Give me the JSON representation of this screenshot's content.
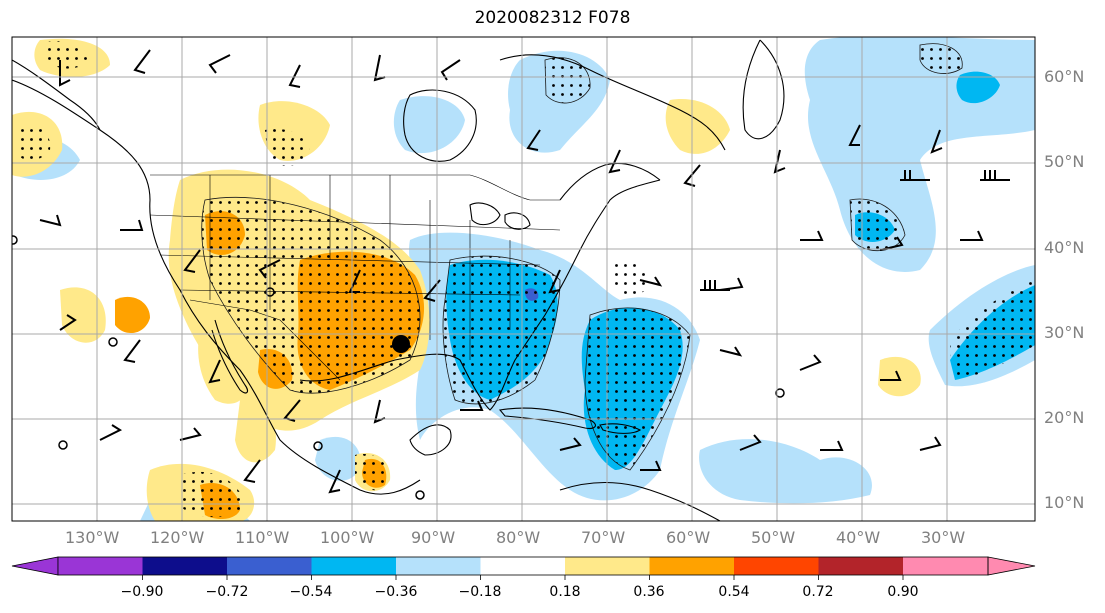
{
  "title": "2020082312 F078",
  "lat_labels": [
    "60°N",
    "50°N",
    "40°N",
    "30°N",
    "20°N",
    "10°N"
  ],
  "lon_labels": [
    "130°W",
    "120°W",
    "110°W",
    "100°W",
    "90°W",
    "80°W",
    "70°W",
    "60°W",
    "50°W",
    "40°W",
    "30°W"
  ],
  "colorbar": {
    "tick_labels": [
      "−0.90",
      "−0.72",
      "−0.54",
      "−0.36",
      "−0.18",
      "0.18",
      "0.36",
      "0.54",
      "0.72",
      "0.90"
    ],
    "colors": [
      "#9a35d6",
      "#0d0d8c",
      "#3a5fd0",
      "#00b7f2",
      "#b5e1fb",
      "#ffffff",
      "#ffe98a",
      "#ffa200",
      "#ff4500",
      "#b3242a",
      "#ff8ab0"
    ]
  },
  "colors": {
    "pos_light": "#ffe98a",
    "pos_mid": "#ffa200",
    "neg_light": "#b5e1fb",
    "neg_mid": "#00b7f2",
    "neg_strong": "#3a5fd0",
    "gridline": "#a9a9a9",
    "coast": "#000000"
  },
  "chart_data": {
    "type": "map",
    "field": "shaded anomaly with stippling and wind barbs",
    "lat_range": [
      "~8°N",
      "~65°N"
    ],
    "lon_range": [
      "~140°W",
      "~20°W"
    ],
    "colorbar_levels": [
      -0.9,
      -0.72,
      -0.54,
      -0.36,
      -0.18,
      0.18,
      0.36,
      0.54,
      0.72,
      0.9
    ],
    "grid": true
  }
}
